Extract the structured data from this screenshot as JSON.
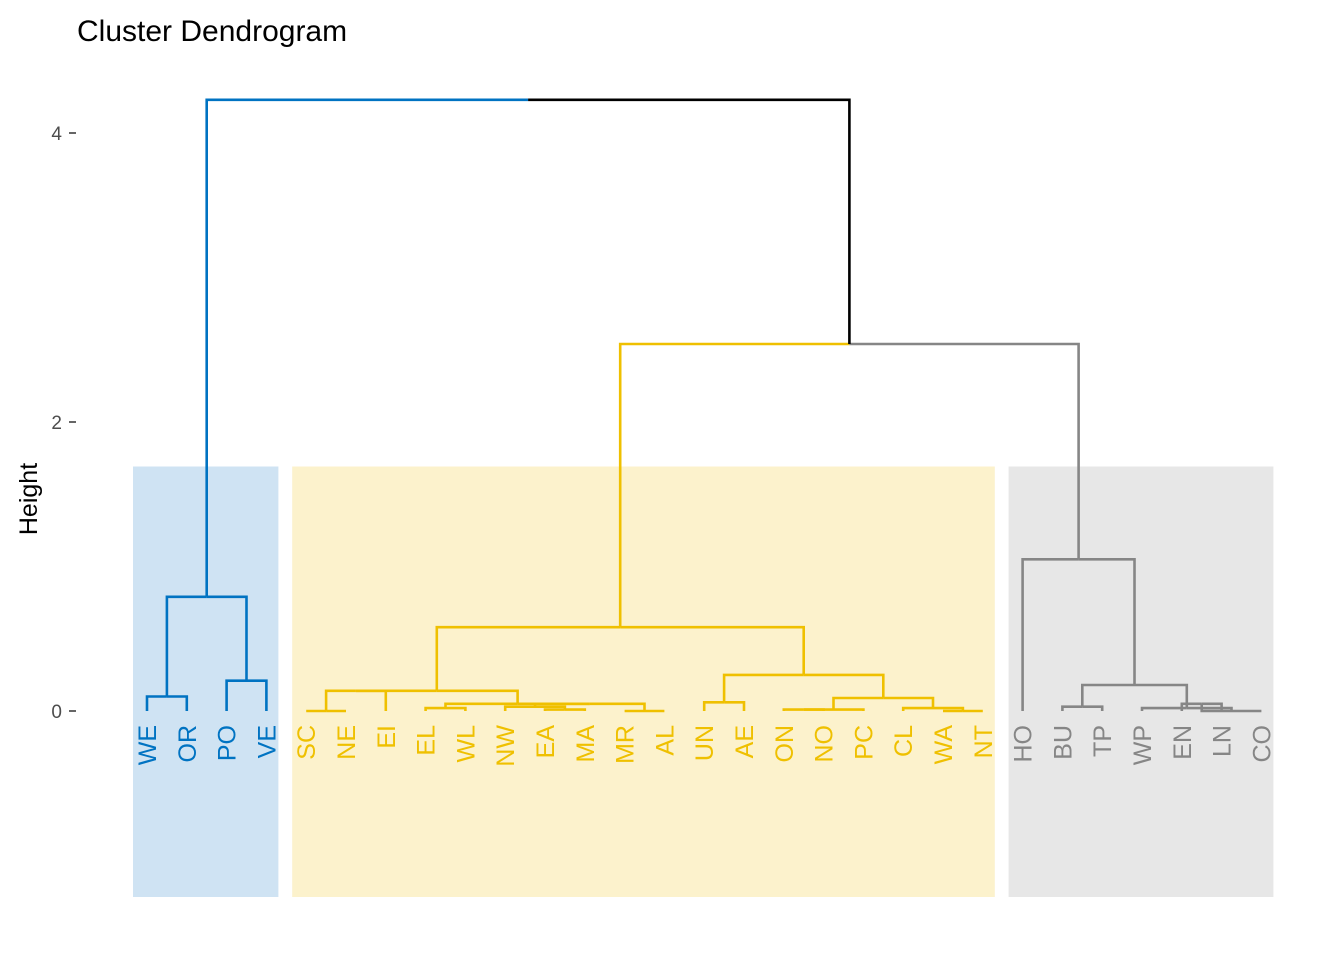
{
  "chart_data": {
    "type": "dendrogram",
    "title": "Cluster Dendrogram",
    "ylabel": "Height",
    "xlabel": "",
    "ylim": [
      0,
      4.2
    ],
    "yticks": [
      0,
      2,
      4
    ],
    "grid": false,
    "leaves": [
      "WE",
      "OR",
      "PO",
      "VE",
      "SC",
      "NE",
      "EI",
      "EL",
      "WL",
      "NW",
      "EA",
      "MA",
      "MR",
      "AL",
      "UN",
      "AE",
      "ON",
      "NO",
      "PC",
      "CL",
      "WA",
      "NT",
      "HO",
      "BU",
      "TP",
      "WP",
      "EN",
      "LN",
      "CO"
    ],
    "clusters": [
      {
        "color": "#0073C2",
        "fill": "#CFE3F3",
        "leaves": [
          "WE",
          "OR",
          "PO",
          "VE"
        ]
      },
      {
        "color": "#EFC000",
        "fill": "#FCF2CC",
        "leaves": [
          "SC",
          "NE",
          "EI",
          "EL",
          "WL",
          "NW",
          "EA",
          "MA",
          "MR",
          "AL",
          "UN",
          "AE",
          "ON",
          "NO",
          "PC",
          "CL",
          "WA",
          "NT"
        ]
      },
      {
        "color": "#868686",
        "fill": "#E7E7E7",
        "leaves": [
          "HO",
          "BU",
          "TP",
          "WP",
          "EN",
          "LN",
          "CO"
        ]
      }
    ],
    "merges": [
      {
        "id": "m1",
        "left": "WE",
        "right": "OR",
        "height": 0.1
      },
      {
        "id": "m2",
        "left": "PO",
        "right": "VE",
        "height": 0.21
      },
      {
        "id": "m3",
        "left": "m1",
        "right": "m2",
        "height": 0.79
      },
      {
        "id": "m4",
        "left": "SC",
        "right": "NE",
        "height": 0.0
      },
      {
        "id": "m5",
        "left": "m4",
        "right": "EI",
        "height": 0.14
      },
      {
        "id": "m6",
        "left": "EL",
        "right": "WL",
        "height": 0.02
      },
      {
        "id": "m7",
        "left": "EA",
        "right": "MA",
        "height": 0.01
      },
      {
        "id": "m8",
        "left": "NW",
        "right": "m7",
        "height": 0.03
      },
      {
        "id": "m9",
        "left": "MR",
        "right": "AL",
        "height": 0.0
      },
      {
        "id": "m10",
        "left": "m8",
        "right": "m9",
        "height": 0.05
      },
      {
        "id": "m11",
        "left": "m6",
        "right": "m10",
        "height": 0.05
      },
      {
        "id": "m12",
        "left": "m5",
        "right": "m11",
        "height": 0.14
      },
      {
        "id": "m13",
        "left": "UN",
        "right": "AE",
        "height": 0.06
      },
      {
        "id": "m14",
        "left": "ON",
        "right": "NO",
        "height": 0.01
      },
      {
        "id": "m15",
        "left": "m14",
        "right": "PC",
        "height": 0.01
      },
      {
        "id": "m16",
        "left": "WA",
        "right": "NT",
        "height": 0.0
      },
      {
        "id": "m17",
        "left": "CL",
        "right": "m16",
        "height": 0.02
      },
      {
        "id": "m18",
        "left": "m15",
        "right": "m17",
        "height": 0.09
      },
      {
        "id": "m19",
        "left": "m13",
        "right": "m18",
        "height": 0.25
      },
      {
        "id": "m20",
        "left": "m12",
        "right": "m19",
        "height": 0.58
      },
      {
        "id": "m21",
        "left": "EN",
        "right": "LN",
        "height": 0.05
      },
      {
        "id": "m22",
        "left": "m21",
        "right": "CO",
        "height": 0.0
      },
      {
        "id": "m23",
        "left": "WP",
        "right": "m22",
        "height": 0.02
      },
      {
        "id": "m24",
        "left": "BU",
        "right": "TP",
        "height": 0.03
      },
      {
        "id": "m25",
        "left": "m24",
        "right": "m23",
        "height": 0.18
      },
      {
        "id": "m26",
        "left": "HO",
        "right": "m25",
        "height": 1.05
      },
      {
        "id": "m27",
        "left": "m20",
        "right": "m26",
        "height": 2.54
      },
      {
        "id": "m28",
        "left": "m3",
        "right": "m27",
        "height": 4.23
      }
    ]
  }
}
